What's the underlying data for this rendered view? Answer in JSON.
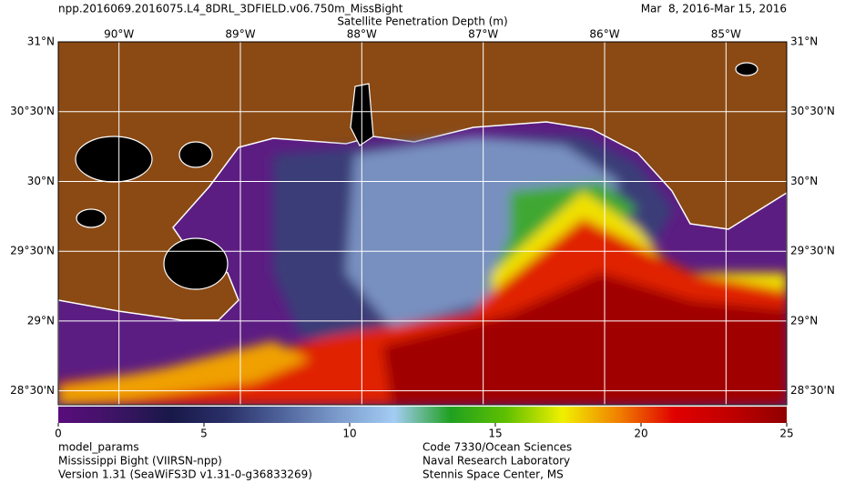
{
  "header": {
    "title": "npp.2016069.2016075.L4_8DRL_3DFIELD.v06.750m_MissBight",
    "subtitle": "Satellite Penetration Depth (m)",
    "date_range": "Mar  8, 2016-Mar 15, 2016"
  },
  "map": {
    "xlim": [
      -90.5,
      -84.5
    ],
    "ylim": [
      28.4,
      31
    ],
    "xticks": [
      {
        "value": -90,
        "label": "90°W"
      },
      {
        "value": -89,
        "label": "89°W"
      },
      {
        "value": -88,
        "label": "88°W"
      },
      {
        "value": -87,
        "label": "87°W"
      },
      {
        "value": -86,
        "label": "86°W"
      },
      {
        "value": -85,
        "label": "85°W"
      }
    ],
    "yticks": [
      {
        "value": 31,
        "label": "31°N"
      },
      {
        "value": 30.5,
        "label": "30°30'N"
      },
      {
        "value": 30,
        "label": "30°N"
      },
      {
        "value": 29.5,
        "label": "29°30'N"
      },
      {
        "value": 29,
        "label": "29°N"
      },
      {
        "value": 28.5,
        "label": "28°30'N"
      }
    ],
    "grid": true
  },
  "colorbar": {
    "lim": [
      0,
      25
    ],
    "ticks": [
      0,
      5,
      10,
      15,
      20,
      25
    ],
    "colors": [
      "#5a0c7c",
      "#3e1466",
      "#181848",
      "#2a3068",
      "#50649c",
      "#7c9ccc",
      "#a4ccf4",
      "#20a020",
      "#60c000",
      "#f0f000",
      "#f08000",
      "#e00000",
      "#c00000",
      "#900000"
    ]
  },
  "footer": {
    "left": [
      "model_params",
      "Mississippi Bight (VIIRSN-npp)",
      "Version 1.31 (SeaWiFS3D v1.31-0-g36833269)"
    ],
    "right": [
      "Code 7330/Ocean Sciences",
      "Naval Research Laboratory",
      "Stennis Space Center, MS"
    ]
  }
}
